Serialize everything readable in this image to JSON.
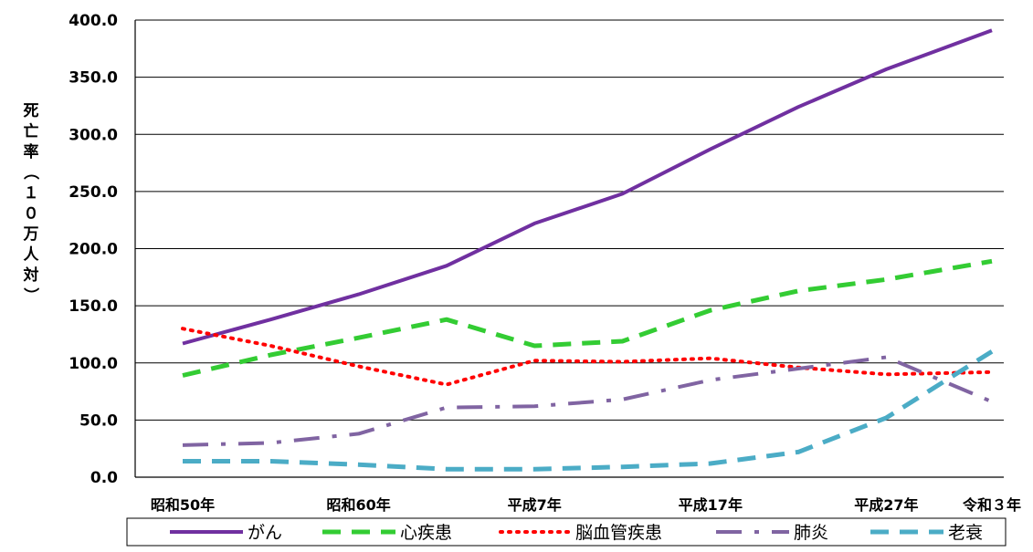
{
  "chart_data": {
    "type": "line",
    "title": "",
    "ylabel": "死亡率（１０万人対）",
    "xlabel": "",
    "ylim": [
      0,
      400
    ],
    "y_ticks": [
      "0.0",
      "50.0",
      "100.0",
      "150.0",
      "200.0",
      "250.0",
      "300.0",
      "350.0",
      "400.0"
    ],
    "x": [
      1975,
      1980,
      1985,
      1990,
      1995,
      2000,
      2005,
      2010,
      2015,
      2021
    ],
    "x_tick_labels": [
      {
        "x": 1975,
        "label": "昭和50年"
      },
      {
        "x": 1985,
        "label": "昭和60年"
      },
      {
        "x": 1995,
        "label": "平成7年"
      },
      {
        "x": 2005,
        "label": "平成17年"
      },
      {
        "x": 2015,
        "label": "平成27年"
      },
      {
        "x": 2021,
        "label": "令和３年"
      }
    ],
    "grid": true,
    "legend_position": "bottom",
    "series": [
      {
        "name": "がん",
        "color": "#7030a0",
        "style": "solid",
        "values": [
          117,
          138,
          160,
          185,
          222,
          248,
          287,
          324,
          357,
          391
        ]
      },
      {
        "name": "心疾患",
        "color": "#33cc33",
        "style": "dash",
        "values": [
          89,
          107,
          122,
          138,
          115,
          119,
          146,
          163,
          173,
          189
        ]
      },
      {
        "name": "脳血管疾患",
        "color": "#ff0000",
        "style": "dot",
        "values": [
          130,
          115,
          97,
          81,
          102,
          101,
          104,
          96,
          90,
          92
        ]
      },
      {
        "name": "肺炎",
        "color": "#8064a2",
        "style": "dashdot",
        "values": [
          28,
          30,
          38,
          61,
          62,
          68,
          85,
          95,
          105,
          66
        ]
      },
      {
        "name": "老衰",
        "color": "#4bacc6",
        "style": "dash",
        "values": [
          14,
          14,
          11,
          7,
          7,
          9,
          12,
          22,
          52,
          110
        ]
      }
    ]
  }
}
